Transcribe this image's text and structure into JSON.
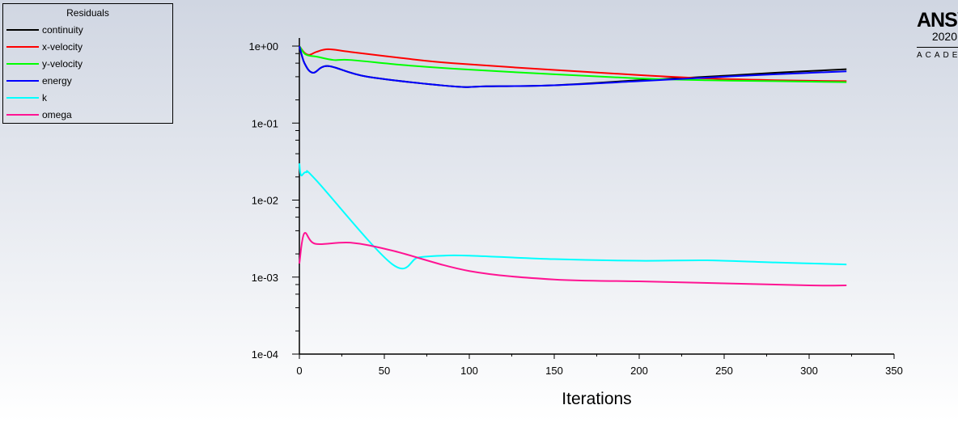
{
  "chart_data": {
    "type": "line",
    "title": "",
    "xlabel": "Iterations",
    "ylabel": "",
    "xlim": [
      0,
      350
    ],
    "ylim": [
      0.0001,
      1
    ],
    "yscale": "log",
    "grid": false,
    "legend_placement": "top-left",
    "legend_title": "Residuals",
    "x_ticks": [
      "0",
      "50",
      "100",
      "150",
      "200",
      "250",
      "300",
      "350"
    ],
    "y_ticks": [
      "1e+00",
      "1e-01",
      "1e-02",
      "1e-03",
      "1e-04"
    ],
    "series": [
      {
        "name": "continuity",
        "color": "#000000",
        "x": [
          0,
          3,
          8,
          17,
          40,
          90,
          110,
          150,
          200,
          240,
          280,
          322
        ],
        "y": [
          1,
          0.6,
          0.45,
          0.55,
          0.4,
          0.3,
          0.3,
          0.31,
          0.36,
          0.4,
          0.45,
          0.5
        ]
      },
      {
        "name": "x-velocity",
        "color": "#ff0000",
        "x": [
          0,
          3,
          6,
          10,
          17,
          30,
          60,
          90,
          150,
          200,
          240,
          280,
          322
        ],
        "y": [
          1,
          0.82,
          0.77,
          0.84,
          0.91,
          0.84,
          0.7,
          0.6,
          0.49,
          0.42,
          0.38,
          0.36,
          0.35
        ]
      },
      {
        "name": "y-velocity",
        "color": "#00ff00",
        "x": [
          0,
          3,
          6,
          10,
          20,
          30,
          60,
          90,
          150,
          200,
          240,
          280,
          322
        ],
        "y": [
          1,
          0.8,
          0.75,
          0.73,
          0.66,
          0.66,
          0.57,
          0.51,
          0.43,
          0.38,
          0.36,
          0.35,
          0.34
        ]
      },
      {
        "name": "energy",
        "color": "#0000ff",
        "x": [
          0,
          3,
          8,
          17,
          40,
          90,
          110,
          150,
          200,
          240,
          280,
          322
        ],
        "y": [
          1,
          0.6,
          0.45,
          0.55,
          0.4,
          0.3,
          0.3,
          0.31,
          0.35,
          0.39,
          0.43,
          0.47
        ]
      },
      {
        "name": "k",
        "color": "#00ffff",
        "x": [
          0,
          1,
          4,
          10,
          54.5,
          70,
          85,
          100,
          150,
          200,
          240,
          280,
          322
        ],
        "y": [
          0.03,
          0.021,
          0.023,
          0.018,
          0.00148,
          0.0018,
          0.0019,
          0.0019,
          0.00171,
          0.00163,
          0.00165,
          0.00155,
          0.00146
        ]
      },
      {
        "name": "omega",
        "color": "#ff1493",
        "x": [
          0,
          2.9,
          9.5,
          30,
          55,
          100,
          150,
          200,
          250,
          300,
          322
        ],
        "y": [
          0.0015,
          0.0037,
          0.0027,
          0.0028,
          0.0022,
          0.0012,
          0.00093,
          0.00088,
          0.00083,
          0.00078,
          0.00078
        ]
      }
    ]
  },
  "logo": {
    "name": "ANSYS",
    "year": "2020",
    "edition": "ACADEMIC"
  }
}
